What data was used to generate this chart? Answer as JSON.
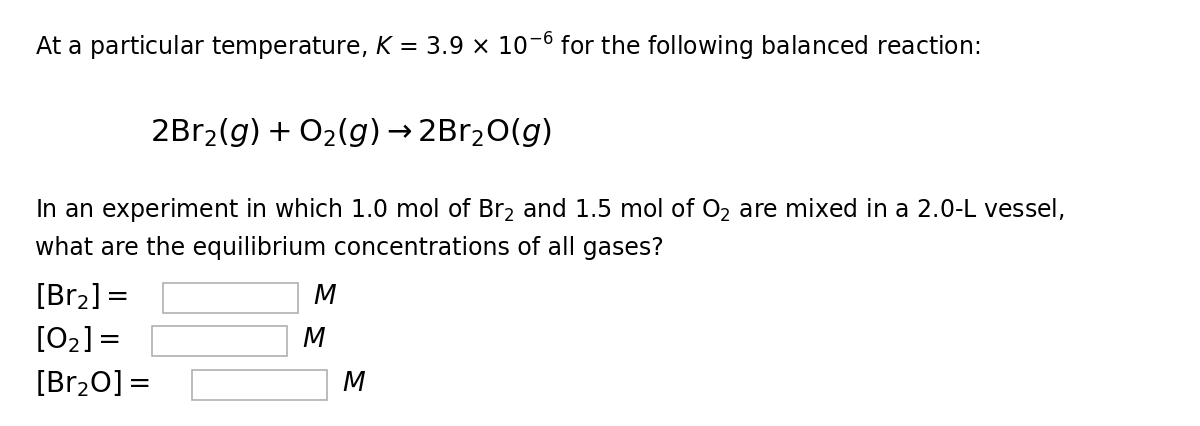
{
  "background_color": "#ffffff",
  "figsize": [
    12.0,
    4.26
  ],
  "dpi": 100,
  "line1_plain": "At a particular temperature, ",
  "line1_K": "K",
  "line1_rest": " = 3.9 × 10",
  "line1_exp": "−6",
  "line1_end": " for the following balanced reaction:",
  "line2": "$2\\mathrm{Br}_2(g) + \\mathrm{O}_2(g) \\rightarrow 2\\mathrm{Br}_2\\mathrm{O}(g)$",
  "line3a": "In an experiment in which 1.0 mol of $\\mathrm{Br}_2$ and 1.5 mol of $\\mathrm{O}_2$ are mixed in a 2.0-L vessel,",
  "line3b": "what are the equilibrium concentrations of all gases?",
  "label1": "$[\\mathrm{Br}_2] =$",
  "label2": "$[\\mathrm{O}_2] =$",
  "label3": "$[\\mathrm{Br}_2\\mathrm{O}] =$",
  "unit": "$M$",
  "text_color": "#000000",
  "box_facecolor": "#ffffff",
  "box_edgecolor": "#b0b0b0",
  "font_size_main": 17,
  "font_size_reaction": 22,
  "font_size_labels": 20,
  "font_size_unit": 19
}
